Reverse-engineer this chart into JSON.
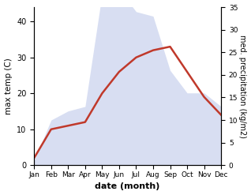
{
  "months": [
    "Jan",
    "Feb",
    "Mar",
    "Apr",
    "May",
    "Jun",
    "Jul",
    "Aug",
    "Sep",
    "Oct",
    "Nov",
    "Dec"
  ],
  "max_temp": [
    2,
    10,
    11,
    12,
    20,
    26,
    30,
    32,
    33,
    26,
    19,
    14
  ],
  "precipitation": [
    1,
    10,
    12,
    13,
    38,
    39,
    34,
    33,
    21,
    16,
    16,
    13
  ],
  "temp_color": "#c0392b",
  "precip_fill_color": "#b8c4e8",
  "temp_ylim": [
    0,
    44
  ],
  "precip_ylim": [
    0,
    35
  ],
  "temp_yticks": [
    0,
    10,
    20,
    30,
    40
  ],
  "precip_yticks": [
    0,
    5,
    10,
    15,
    20,
    25,
    30,
    35
  ],
  "ylabel_left": "max temp (C)",
  "ylabel_right": "med. precipitation (kg/m2)",
  "xlabel": "date (month)",
  "figsize": [
    3.18,
    2.47
  ],
  "dpi": 100
}
